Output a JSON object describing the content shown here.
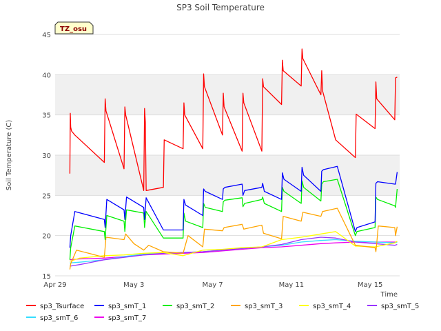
{
  "chart_data": {
    "type": "line",
    "title": "SP3 Soil Temperature",
    "xlabel": "Time",
    "ylabel": "Soil Temperature (C)",
    "badge": "TZ_osu",
    "ylim": [
      15,
      45
    ],
    "yticks": [
      15,
      20,
      25,
      30,
      35,
      40,
      45
    ],
    "xlim": [
      "2023-04-29",
      "2023-05-16T12:00"
    ],
    "xticks": [
      {
        "date": "2023-04-29",
        "label": "Apr 29"
      },
      {
        "date": "2023-05-03",
        "label": "May 3"
      },
      {
        "date": "2023-05-07",
        "label": "May 7"
      },
      {
        "date": "2023-05-11",
        "label": "May 11"
      },
      {
        "date": "2023-05-15",
        "label": "May 15"
      }
    ],
    "shaded_bands": [
      [
        25,
        30
      ],
      [
        35,
        40
      ]
    ],
    "grid": true,
    "legend_position": "bottom",
    "series": [
      {
        "name": "sp3_Tsurface",
        "color": "#ff0000",
        "x": [
          "2023-04-29T18:00",
          "2023-04-29T18:30",
          "2023-04-29T19:00",
          "2023-04-29T20:00",
          "2023-04-30T00:00",
          "2023-05-01T12:00",
          "2023-05-01T13:00",
          "2023-05-01T14:00",
          "2023-05-02T12:00",
          "2023-05-02T13:00",
          "2023-05-02T14:00",
          "2023-05-03T12:00",
          "2023-05-03T13:00",
          "2023-05-03T14:00",
          "2023-05-03T15:00",
          "2023-05-04T12:00",
          "2023-05-04T13:00",
          "2023-05-05T12:00",
          "2023-05-05T13:00",
          "2023-05-05T14:00",
          "2023-05-06T12:00",
          "2023-05-06T13:00",
          "2023-05-06T14:00",
          "2023-05-07T12:00",
          "2023-05-07T13:00",
          "2023-05-07T14:00",
          "2023-05-08T12:00",
          "2023-05-08T13:00",
          "2023-05-08T14:00",
          "2023-05-09T12:00",
          "2023-05-09T13:00",
          "2023-05-09T14:00",
          "2023-05-10T12:00",
          "2023-05-10T13:00",
          "2023-05-10T14:00",
          "2023-05-11T12:00",
          "2023-05-11T13:00",
          "2023-05-11T14:00",
          "2023-05-12T12:00",
          "2023-05-12T13:00",
          "2023-05-12T14:00",
          "2023-05-13T06:00",
          "2023-05-14T06:00",
          "2023-05-14T07:00",
          "2023-05-15T06:00",
          "2023-05-15T07:00",
          "2023-05-15T08:00",
          "2023-05-16T06:00",
          "2023-05-16T07:00",
          "2023-05-16T09:00"
        ],
        "y": [
          27.7,
          35.2,
          33.5,
          33.0,
          32.5,
          29.1,
          37.0,
          35.5,
          28.3,
          36.0,
          35.0,
          25.6,
          35.8,
          34.0,
          25.6,
          26.0,
          31.9,
          30.8,
          36.5,
          35.0,
          30.8,
          40.1,
          38.5,
          32.5,
          37.7,
          36.0,
          30.5,
          37.7,
          36.5,
          30.5,
          39.5,
          38.5,
          36.3,
          41.8,
          40.5,
          38.6,
          43.2,
          42.0,
          37.5,
          40.5,
          38.0,
          31.9,
          29.7,
          35.1,
          33.3,
          39.1,
          37.0,
          34.4,
          39.6,
          39.7
        ]
      },
      {
        "name": "sp3_smT_1",
        "color": "#0000ff",
        "x": [
          "2023-04-29T18:00",
          "2023-04-29T19:00",
          "2023-04-30T00:00",
          "2023-05-01T12:00",
          "2023-05-01T13:00",
          "2023-05-01T15:00",
          "2023-05-02T12:00",
          "2023-05-02T13:00",
          "2023-05-02T15:00",
          "2023-05-03T12:00",
          "2023-05-03T13:00",
          "2023-05-03T15:00",
          "2023-05-04T12:00",
          "2023-05-04T13:00",
          "2023-05-05T12:00",
          "2023-05-05T13:00",
          "2023-05-05T15:00",
          "2023-05-06T12:00",
          "2023-05-06T13:00",
          "2023-05-06T15:00",
          "2023-05-07T12:00",
          "2023-05-07T13:00",
          "2023-05-07T15:00",
          "2023-05-08T12:00",
          "2023-05-08T13:00",
          "2023-05-08T15:00",
          "2023-05-09T12:00",
          "2023-05-09T13:00",
          "2023-05-09T15:00",
          "2023-05-10T12:00",
          "2023-05-10T13:00",
          "2023-05-10T15:00",
          "2023-05-11T12:00",
          "2023-05-11T13:00",
          "2023-05-11T15:00",
          "2023-05-12T12:00",
          "2023-05-12T13:00",
          "2023-05-12T15:00",
          "2023-05-13T08:00",
          "2023-05-14T06:00",
          "2023-05-14T08:00",
          "2023-05-15T06:00",
          "2023-05-15T07:00",
          "2023-05-15T09:00",
          "2023-05-16T06:00",
          "2023-05-16T07:00",
          "2023-05-16T09:00"
        ],
        "y": [
          18.5,
          20.0,
          23.0,
          22.0,
          21.0,
          24.5,
          23.2,
          22.0,
          24.8,
          23.5,
          22.0,
          24.7,
          20.7,
          20.7,
          20.7,
          24.5,
          23.8,
          22.5,
          25.8,
          25.5,
          24.5,
          25.8,
          26.0,
          26.4,
          25.0,
          25.6,
          26.0,
          26.5,
          25.5,
          24.5,
          27.8,
          27.0,
          25.5,
          28.5,
          27.5,
          25.5,
          28.0,
          28.2,
          28.6,
          20.5,
          21.0,
          21.7,
          26.5,
          26.7,
          26.4,
          26.4,
          27.9
        ]
      },
      {
        "name": "sp3_smT_2",
        "color": "#00ee00",
        "x": [
          "2023-04-29T18:00",
          "2023-04-29T19:00",
          "2023-04-30T00:00",
          "2023-05-01T12:00",
          "2023-05-01T13:00",
          "2023-05-01T15:00",
          "2023-05-02T12:00",
          "2023-05-02T13:00",
          "2023-05-02T15:00",
          "2023-05-03T12:00",
          "2023-05-03T13:00",
          "2023-05-03T15:00",
          "2023-05-04T12:00",
          "2023-05-04T13:00",
          "2023-05-05T12:00",
          "2023-05-05T13:00",
          "2023-05-05T15:00",
          "2023-05-06T12:00",
          "2023-05-06T13:00",
          "2023-05-06T15:00",
          "2023-05-07T12:00",
          "2023-05-07T13:00",
          "2023-05-07T15:00",
          "2023-05-08T12:00",
          "2023-05-08T13:00",
          "2023-05-08T15:00",
          "2023-05-09T12:00",
          "2023-05-09T13:00",
          "2023-05-09T15:00",
          "2023-05-10T12:00",
          "2023-05-10T13:00",
          "2023-05-10T15:00",
          "2023-05-11T12:00",
          "2023-05-11T13:00",
          "2023-05-11T15:00",
          "2023-05-12T12:00",
          "2023-05-12T13:00",
          "2023-05-12T15:00",
          "2023-05-13T08:00",
          "2023-05-14T06:00",
          "2023-05-14T08:00",
          "2023-05-15T06:00",
          "2023-05-15T07:00",
          "2023-05-15T09:00",
          "2023-05-16T06:00",
          "2023-05-16T07:00",
          "2023-05-16T09:00"
        ],
        "y": [
          17.0,
          18.5,
          21.2,
          20.5,
          19.5,
          22.5,
          21.8,
          20.5,
          23.2,
          22.8,
          21.0,
          23.0,
          19.7,
          19.7,
          19.7,
          22.8,
          21.8,
          21.0,
          24.0,
          23.5,
          23.0,
          24.2,
          24.4,
          24.7,
          23.6,
          24.0,
          24.5,
          24.8,
          24.0,
          23.0,
          26.0,
          25.5,
          24.0,
          26.8,
          26.0,
          24.3,
          26.4,
          26.7,
          27.0,
          20.0,
          20.5,
          21.0,
          24.8,
          24.5,
          23.7,
          23.5,
          25.8
        ]
      },
      {
        "name": "sp3_smT_3",
        "color": "#ffa500",
        "x": [
          "2023-04-29T18:00",
          "2023-04-29T19:00",
          "2023-04-30T02:00",
          "2023-05-01T12:00",
          "2023-05-01T14:00",
          "2023-05-02T12:00",
          "2023-05-02T14:00",
          "2023-05-03T00:00",
          "2023-05-03T12:00",
          "2023-05-03T18:00",
          "2023-05-04T12:00",
          "2023-05-05T12:00",
          "2023-05-05T18:00",
          "2023-05-06T12:00",
          "2023-05-06T14:00",
          "2023-05-07T12:00",
          "2023-05-07T14:00",
          "2023-05-08T12:00",
          "2023-05-08T14:00",
          "2023-05-09T12:00",
          "2023-05-09T14:00",
          "2023-05-10T12:00",
          "2023-05-10T14:00",
          "2023-05-11T12:00",
          "2023-05-11T14:00",
          "2023-05-12T12:00",
          "2023-05-12T14:00",
          "2023-05-13T08:00",
          "2023-05-14T06:00",
          "2023-05-15T06:00",
          "2023-05-15T07:00",
          "2023-05-15T08:00",
          "2023-05-15T10:00",
          "2023-05-16T06:00",
          "2023-05-16T07:00",
          "2023-05-16T09:00"
        ],
        "y": [
          15.8,
          16.5,
          18.2,
          17.3,
          19.8,
          19.5,
          20.2,
          19.0,
          18.2,
          18.8,
          18.0,
          17.8,
          20.0,
          18.6,
          20.8,
          20.6,
          21.0,
          21.4,
          20.8,
          21.3,
          20.3,
          19.6,
          22.4,
          21.8,
          22.9,
          22.4,
          23.0,
          23.4,
          18.8,
          18.5,
          18.0,
          19.0,
          21.2,
          21.0,
          20.0,
          21.1
        ]
      },
      {
        "name": "sp3_smT_4",
        "color": "#ffff00",
        "x": [
          "2023-04-29T18:00",
          "2023-04-30T06:00",
          "2023-05-01T12:00",
          "2023-05-02T12:00",
          "2023-05-03T12:00",
          "2023-05-04T12:00",
          "2023-05-05T12:00",
          "2023-05-06T12:00",
          "2023-05-07T12:00",
          "2023-05-08T12:00",
          "2023-05-09T12:00",
          "2023-05-10T12:00",
          "2023-05-11T12:00",
          "2023-05-12T12:00",
          "2023-05-13T06:00",
          "2023-05-14T06:00",
          "2023-05-15T06:00",
          "2023-05-16T06:00",
          "2023-05-16T09:00"
        ],
        "y": [
          16.8,
          17.2,
          17.5,
          17.6,
          17.8,
          17.9,
          17.5,
          18.2,
          18.3,
          18.5,
          18.6,
          19.5,
          19.8,
          20.2,
          20.5,
          18.7,
          18.6,
          19.1,
          19.3
        ]
      },
      {
        "name": "sp3_smT_5",
        "color": "#9933ff",
        "x": [
          "2023-04-29T18:00",
          "2023-04-30T06:00",
          "2023-05-01T12:00",
          "2023-05-02T12:00",
          "2023-05-03T12:00",
          "2023-05-04T12:00",
          "2023-05-05T12:00",
          "2023-05-06T12:00",
          "2023-05-07T12:00",
          "2023-05-08T12:00",
          "2023-05-09T12:00",
          "2023-05-10T12:00",
          "2023-05-11T12:00",
          "2023-05-12T12:00",
          "2023-05-13T06:00",
          "2023-05-14T06:00",
          "2023-05-15T06:00",
          "2023-05-16T06:00",
          "2023-05-16T09:00"
        ],
        "y": [
          16.2,
          16.4,
          17.0,
          17.3,
          17.6,
          17.8,
          17.9,
          18.0,
          18.2,
          18.4,
          18.6,
          18.9,
          19.5,
          19.8,
          19.7,
          19.2,
          19.0,
          18.8,
          18.9
        ]
      },
      {
        "name": "sp3_smT_6",
        "color": "#33ddff",
        "x": [
          "2023-04-29T18:00",
          "2023-04-30T06:00",
          "2023-05-01T12:00",
          "2023-05-02T12:00",
          "2023-05-03T12:00",
          "2023-05-04T12:00",
          "2023-05-05T12:00",
          "2023-05-06T12:00",
          "2023-05-07T12:00",
          "2023-05-08T12:00",
          "2023-05-09T12:00",
          "2023-05-10T12:00",
          "2023-05-11T12:00",
          "2023-05-12T12:00",
          "2023-05-13T06:00",
          "2023-05-14T06:00",
          "2023-05-15T06:00",
          "2023-05-16T06:00",
          "2023-05-16T09:00"
        ],
        "y": [
          16.6,
          16.7,
          17.0,
          17.4,
          17.7,
          17.8,
          17.9,
          18.0,
          18.2,
          18.4,
          18.6,
          18.8,
          19.2,
          19.4,
          19.5,
          19.3,
          19.2,
          19.1,
          19.2
        ]
      },
      {
        "name": "sp3_smT_7",
        "color": "#ee00ee",
        "x": [
          "2023-04-29T18:00",
          "2023-04-30T06:00",
          "2023-05-01T12:00",
          "2023-05-02T12:00",
          "2023-05-03T12:00",
          "2023-05-04T12:00",
          "2023-05-05T12:00",
          "2023-05-06T12:00",
          "2023-05-07T12:00",
          "2023-05-08T12:00",
          "2023-05-09T12:00",
          "2023-05-10T12:00",
          "2023-05-11T12:00",
          "2023-05-12T12:00",
          "2023-05-13T06:00",
          "2023-05-14T06:00",
          "2023-05-15T06:00",
          "2023-05-16T06:00",
          "2023-05-16T09:00"
        ],
        "y": [
          17.0,
          17.1,
          17.2,
          17.4,
          17.6,
          17.7,
          17.8,
          17.9,
          18.1,
          18.3,
          18.5,
          18.6,
          18.8,
          19.0,
          19.1,
          19.2,
          19.2,
          19.2,
          19.2
        ]
      }
    ]
  }
}
